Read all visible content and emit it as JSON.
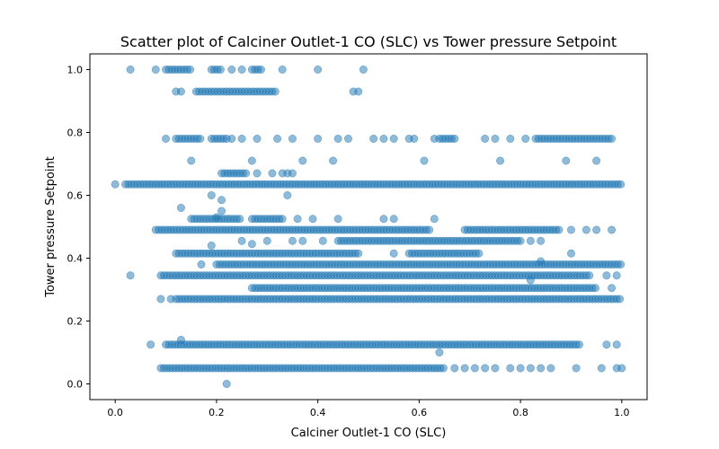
{
  "chart_data": {
    "type": "scatter",
    "title": "Scatter plot of Calciner Outlet-1 CO (SLC) vs Tower pressure Setpoint",
    "xlabel": "Calciner Outlet-1 CO (SLC)",
    "ylabel": "Tower pressure Setpoint",
    "xlim": [
      -0.05,
      1.05
    ],
    "ylim": [
      -0.05,
      1.05
    ],
    "xticks": [
      "0.0",
      "0.2",
      "0.4",
      "0.6",
      "0.8",
      "1.0"
    ],
    "yticks": [
      "0.0",
      "0.2",
      "0.4",
      "0.6",
      "0.8",
      "1.0"
    ],
    "grid": false,
    "marker_color": "#1f77b4",
    "marker_alpha": 0.5,
    "bands": [
      {
        "y": 1.0,
        "x_ranges": [
          [
            0.1,
            0.15
          ],
          [
            0.19,
            0.21
          ],
          [
            0.27,
            0.29
          ]
        ],
        "sparse_x": [
          0.03,
          0.08,
          0.23,
          0.25,
          0.33,
          0.4,
          0.49
        ]
      },
      {
        "y": 0.93,
        "x_ranges": [
          [
            0.16,
            0.32
          ]
        ],
        "sparse_x": [
          0.12,
          0.13,
          0.47,
          0.48
        ]
      },
      {
        "y": 0.78,
        "x_ranges": [
          [
            0.12,
            0.17
          ],
          [
            0.19,
            0.22
          ],
          [
            0.64,
            0.67
          ],
          [
            0.83,
            0.98
          ]
        ],
        "sparse_x": [
          0.1,
          0.23,
          0.25,
          0.28,
          0.32,
          0.35,
          0.4,
          0.44,
          0.46,
          0.51,
          0.53,
          0.55,
          0.58,
          0.59,
          0.63,
          0.73,
          0.75,
          0.78,
          0.81
        ]
      },
      {
        "y": 0.71,
        "x_ranges": [],
        "sparse_x": [
          0.15,
          0.27,
          0.37,
          0.43,
          0.61,
          0.76,
          0.89,
          0.95
        ]
      },
      {
        "y": 0.67,
        "x_ranges": [
          [
            0.21,
            0.26
          ]
        ],
        "sparse_x": [
          0.28,
          0.31,
          0.33,
          0.34,
          0.35
        ]
      },
      {
        "y": 0.635,
        "x_ranges": [
          [
            0.02,
            1.0
          ]
        ],
        "sparse_x": [
          0.0
        ]
      },
      {
        "y": 0.6,
        "x_ranges": [],
        "sparse_x": [
          0.19,
          0.34
        ]
      },
      {
        "y": 0.585,
        "x_ranges": [],
        "sparse_x": [
          0.21
        ]
      },
      {
        "y": 0.525,
        "x_ranges": [
          [
            0.15,
            0.25
          ],
          [
            0.27,
            0.33
          ]
        ],
        "sparse_x": [
          0.36,
          0.39,
          0.44,
          0.53,
          0.55,
          0.63
        ]
      },
      {
        "y": 0.49,
        "x_ranges": [
          [
            0.08,
            0.62
          ],
          [
            0.69,
            0.88
          ]
        ],
        "sparse_x": [
          0.9,
          0.93,
          0.95,
          0.98
        ]
      },
      {
        "y": 0.455,
        "x_ranges": [
          [
            0.44,
            0.8
          ]
        ],
        "sparse_x": [
          0.3,
          0.35,
          0.37,
          0.41,
          0.82,
          0.84
        ]
      },
      {
        "y": 0.415,
        "x_ranges": [
          [
            0.12,
            0.48
          ],
          [
            0.58,
            0.72
          ]
        ],
        "sparse_x": [
          0.55,
          0.9
        ]
      },
      {
        "y": 0.38,
        "x_ranges": [
          [
            0.2,
            1.0
          ]
        ],
        "sparse_x": [
          0.17
        ]
      },
      {
        "y": 0.345,
        "x_ranges": [
          [
            0.09,
            0.94
          ]
        ],
        "sparse_x": [
          0.03,
          0.97,
          0.99
        ]
      },
      {
        "y": 0.305,
        "x_ranges": [
          [
            0.27,
            0.95
          ]
        ],
        "sparse_x": [
          0.98
        ]
      },
      {
        "y": 0.27,
        "x_ranges": [
          [
            0.12,
            1.0
          ]
        ],
        "sparse_x": [
          0.09,
          0.11
        ]
      },
      {
        "y": 0.125,
        "x_ranges": [
          [
            0.1,
            0.92
          ]
        ],
        "sparse_x": [
          0.07,
          0.97,
          0.99
        ]
      },
      {
        "y": 0.05,
        "x_ranges": [
          [
            0.09,
            0.65
          ]
        ],
        "sparse_x": [
          0.67,
          0.69,
          0.71,
          0.73,
          0.75,
          0.78,
          0.8,
          0.82,
          0.84,
          0.86,
          0.91,
          0.96,
          0.99,
          1.0
        ]
      },
      {
        "y": 0.0,
        "x_ranges": [],
        "sparse_x": [
          0.22
        ]
      }
    ],
    "outliers": [
      [
        0.13,
        0.56
      ],
      [
        0.25,
        0.455
      ],
      [
        0.27,
        0.445
      ],
      [
        0.19,
        0.44
      ],
      [
        0.82,
        0.33
      ],
      [
        0.64,
        0.1
      ],
      [
        0.13,
        0.14
      ],
      [
        0.84,
        0.39
      ],
      [
        0.2,
        0.53
      ],
      [
        0.21,
        0.55
      ]
    ]
  }
}
